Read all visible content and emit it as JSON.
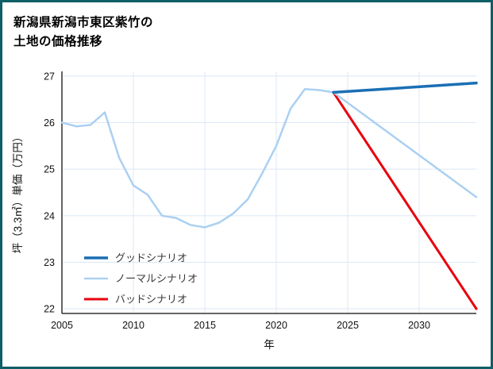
{
  "page": {
    "border_color": "#0f5f66",
    "background": "#ffffff"
  },
  "title": {
    "lines": [
      "新潟県新潟市東区紫竹の",
      "土地の価格推移"
    ]
  },
  "chart_data": {
    "type": "line",
    "title": "新潟県新潟市東区紫竹の土地の価格推移",
    "xlabel": "年",
    "ylabel": "坪（3.3㎡）単価（万円）",
    "xlim": [
      2005,
      2034
    ],
    "ylim": [
      21.9,
      27.1
    ],
    "xticks": [
      2005,
      2010,
      2015,
      2020,
      2025,
      2030
    ],
    "yticks": [
      22,
      23,
      24,
      25,
      26,
      27
    ],
    "grid": true,
    "grid_color": "#dce8f5",
    "axis_color": "#333333",
    "tick_color": "#111111",
    "legend_position": "lower-left",
    "legend_text_color": "#3a3a3a",
    "series": [
      {
        "name": "グッドシナリオ",
        "color": "#1a6fb5",
        "width": 3.5,
        "x": [
          2024,
          2034
        ],
        "y": [
          26.65,
          26.85
        ]
      },
      {
        "name": "ノーマルシナリオ",
        "color": "#abd0f2",
        "width": 2.5,
        "x": [
          2005,
          2006,
          2007,
          2008,
          2009,
          2010,
          2011,
          2012,
          2013,
          2014,
          2015,
          2016,
          2017,
          2018,
          2019,
          2020,
          2021,
          2022,
          2023,
          2024,
          2034
        ],
        "y": [
          26.0,
          25.92,
          25.95,
          26.22,
          25.25,
          24.65,
          24.45,
          24.0,
          23.95,
          23.8,
          23.75,
          23.85,
          24.05,
          24.35,
          24.9,
          25.5,
          26.3,
          26.72,
          26.7,
          26.65,
          24.4
        ]
      },
      {
        "name": "バッドシナリオ",
        "color": "#e8000d",
        "width": 3,
        "x": [
          2024,
          2034
        ],
        "y": [
          26.65,
          22.0
        ]
      }
    ]
  }
}
